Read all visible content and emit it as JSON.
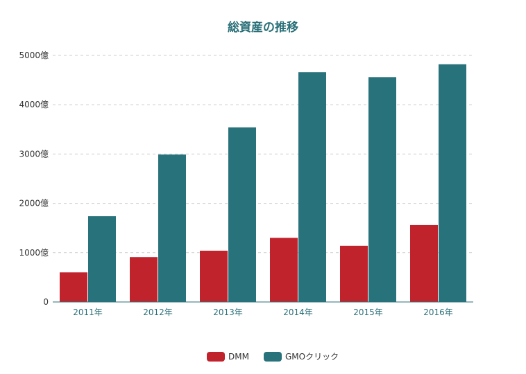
{
  "chart_data": {
    "type": "bar",
    "title": "総資産の推移",
    "categories": [
      "2011年",
      "2012年",
      "2013年",
      "2014年",
      "2015年",
      "2016年"
    ],
    "series": [
      {
        "name": "DMM",
        "color": "#c0232b",
        "values": [
          600,
          910,
          1040,
          1300,
          1140,
          1560
        ]
      },
      {
        "name": "GMOクリック",
        "color": "#28727b",
        "values": [
          1740,
          2990,
          3540,
          4660,
          4560,
          4820
        ]
      }
    ],
    "yticks": [
      "0",
      "1000億",
      "2000億",
      "3000億",
      "4000億",
      "5000億"
    ],
    "ylim": [
      0,
      5000
    ],
    "xlabel": "",
    "ylabel": "",
    "grid": true,
    "legend_position": "bottom"
  }
}
